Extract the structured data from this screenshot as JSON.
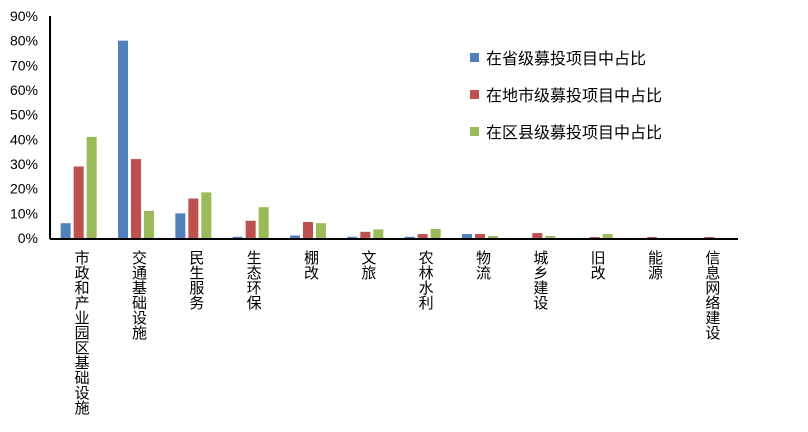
{
  "chart_data": {
    "type": "bar",
    "categories": [
      "市政和产业园区基础设施",
      "交通基础设施",
      "民生服务",
      "生态环保",
      "棚改",
      "文旅",
      "农林水利",
      "物流",
      "城乡建设",
      "旧改",
      "能源",
      "信息网络建设"
    ],
    "series": [
      {
        "name": "在省级募投项目中占比",
        "color": "#4f81bd",
        "values": [
          6,
          80,
          10,
          0.5,
          1,
          0.5,
          0.5,
          1.6,
          0,
          0,
          0,
          0
        ]
      },
      {
        "name": "在地市级募投项目中占比",
        "color": "#c0504d",
        "values": [
          29,
          32,
          16,
          7,
          6.5,
          2.5,
          1.6,
          1.6,
          2,
          0.4,
          0.4,
          0.4
        ]
      },
      {
        "name": "在区县级募投项目中占比",
        "color": "#9bbb59",
        "values": [
          41,
          11,
          18.5,
          12.5,
          6,
          3.5,
          3.7,
          0.8,
          0.8,
          1.6,
          0,
          0
        ]
      }
    ],
    "yticks": [
      "0%",
      "10%",
      "20%",
      "30%",
      "40%",
      "50%",
      "60%",
      "70%",
      "80%",
      "90%"
    ],
    "ylim": [
      0,
      90
    ],
    "grid": false,
    "legend_position": "top-right",
    "title": "",
    "xlabel": "",
    "ylabel": ""
  }
}
